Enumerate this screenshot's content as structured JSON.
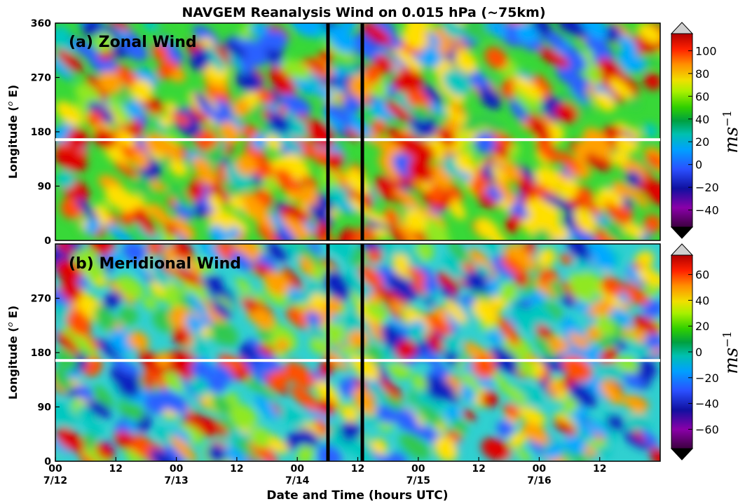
{
  "chart_data": [
    {
      "type": "heatmap",
      "title": "NAVGEM Reanalysis Wind on 0.015 hPa (~75km)",
      "panel_label": "(a) Zonal Wind",
      "xlabel": "",
      "ylabel": "Longitude (° E)",
      "ylabel_parts": {
        "pre": "Longitude (",
        "italic": "o",
        "post": " E)"
      },
      "ylim": [
        0,
        360
      ],
      "yticks": [
        "0",
        "90",
        "180",
        "270",
        "360"
      ],
      "colorbar": {
        "label": "ms^-1",
        "label_base": "ms",
        "label_exp": "−1",
        "range": [
          -55,
          115
        ],
        "ticks": [
          "−40",
          "−20",
          "0",
          "20",
          "40",
          "60",
          "80",
          "100"
        ],
        "tick_values": [
          -40,
          -20,
          0,
          20,
          40,
          60,
          80,
          100
        ]
      },
      "markers": {
        "vertical_lines": [
          "7/14 06",
          "7/14 12"
        ],
        "horizontal_line_longitude": 167
      }
    },
    {
      "type": "heatmap",
      "panel_label": "(b) Meridional Wind",
      "xlabel": "Date and Time (hours UTC)",
      "ylabel": "Longitude (° E)",
      "ylabel_parts": {
        "pre": "Longitude (",
        "italic": "o",
        "post": " E)"
      },
      "ylim": [
        0,
        360
      ],
      "yticks": [
        "0",
        "90",
        "180",
        "270"
      ],
      "xticks": [
        {
          "hour": "00",
          "date": "7/12"
        },
        {
          "hour": "12",
          "date": ""
        },
        {
          "hour": "00",
          "date": "7/13"
        },
        {
          "hour": "12",
          "date": ""
        },
        {
          "hour": "00",
          "date": "7/14"
        },
        {
          "hour": "12",
          "date": ""
        },
        {
          "hour": "00",
          "date": "7/15"
        },
        {
          "hour": "12",
          "date": ""
        },
        {
          "hour": "00",
          "date": "7/16"
        },
        {
          "hour": "12",
          "date": ""
        }
      ],
      "colorbar": {
        "label": "ms^-1",
        "label_base": "ms",
        "label_exp": "−1",
        "range": [
          -75,
          75
        ],
        "ticks": [
          "−60",
          "−40",
          "−20",
          "0",
          "20",
          "40",
          "60"
        ],
        "tick_values": [
          -60,
          -40,
          -20,
          0,
          20,
          40,
          60
        ]
      },
      "markers": {
        "vertical_lines": [
          "7/14 06",
          "7/14 12"
        ],
        "horizontal_line_longitude": 167
      }
    }
  ]
}
